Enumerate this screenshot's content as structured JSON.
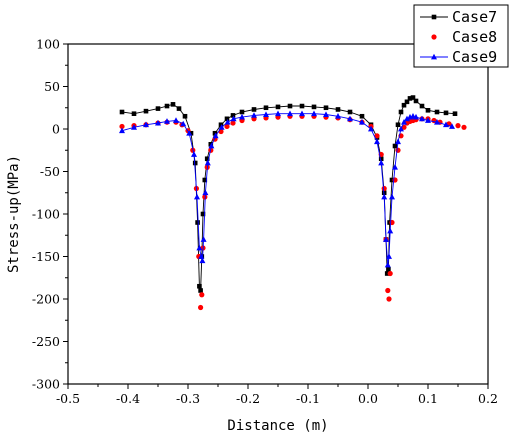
{
  "chart_data": {
    "type": "line",
    "xlabel": "Distance (m)",
    "ylabel": "Stress-up(MPa)",
    "xlim": [
      -0.5,
      0.2
    ],
    "ylim": [
      -300,
      100
    ],
    "x_ticks": [
      -0.5,
      -0.4,
      -0.3,
      -0.2,
      -0.1,
      0.0,
      0.1,
      0.2
    ],
    "x_tick_labels": [
      "-0.5",
      "-0.4",
      "-0.3",
      "-0.2",
      "-0.1",
      "0.0",
      "0.1",
      "0.2"
    ],
    "y_ticks": [
      100,
      50,
      0,
      -50,
      -100,
      -150,
      -200,
      -250,
      -300
    ],
    "y_tick_labels": [
      "100",
      "50",
      "0",
      "-50",
      "-100",
      "-150",
      "-200",
      "-250",
      "-300"
    ],
    "grid": false,
    "legend_position": "top-right",
    "series": [
      {
        "name": "Case7",
        "color": "#000000",
        "marker": "square",
        "x": [
          -0.41,
          -0.39,
          -0.37,
          -0.35,
          -0.335,
          -0.325,
          -0.315,
          -0.305,
          -0.295,
          -0.288,
          -0.284,
          -0.281,
          -0.279,
          -0.277,
          -0.275,
          -0.272,
          -0.268,
          -0.262,
          -0.255,
          -0.245,
          -0.235,
          -0.225,
          -0.21,
          -0.19,
          -0.17,
          -0.15,
          -0.13,
          -0.11,
          -0.09,
          -0.07,
          -0.05,
          -0.03,
          -0.01,
          0.005,
          0.015,
          0.022,
          0.027,
          0.03,
          0.032,
          0.034,
          0.036,
          0.04,
          0.045,
          0.05,
          0.055,
          0.06,
          0.065,
          0.07,
          0.075,
          0.08,
          0.09,
          0.1,
          0.115,
          0.13,
          0.145
        ],
        "y": [
          20,
          18,
          21,
          24,
          27,
          29,
          24,
          15,
          -5,
          -40,
          -110,
          -185,
          -190,
          -150,
          -100,
          -60,
          -35,
          -18,
          -5,
          5,
          12,
          16,
          20,
          23,
          25,
          26,
          27,
          27,
          26,
          25,
          23,
          20,
          15,
          5,
          -10,
          -35,
          -75,
          -130,
          -170,
          -165,
          -110,
          -60,
          -20,
          5,
          20,
          28,
          32,
          36,
          37,
          33,
          27,
          22,
          20,
          19,
          18
        ]
      },
      {
        "name": "Case8",
        "color": "#ff0000",
        "marker": "circle",
        "x": [
          -0.41,
          -0.39,
          -0.37,
          -0.35,
          -0.335,
          -0.32,
          -0.31,
          -0.3,
          -0.292,
          -0.286,
          -0.282,
          -0.279,
          -0.277,
          -0.275,
          -0.272,
          -0.268,
          -0.262,
          -0.255,
          -0.245,
          -0.235,
          -0.225,
          -0.21,
          -0.19,
          -0.17,
          -0.15,
          -0.13,
          -0.11,
          -0.09,
          -0.07,
          -0.05,
          -0.03,
          -0.01,
          0.005,
          0.015,
          0.022,
          0.027,
          0.03,
          0.033,
          0.035,
          0.037,
          0.04,
          0.045,
          0.05,
          0.055,
          0.06,
          0.065,
          0.07,
          0.075,
          0.08,
          0.09,
          0.1,
          0.11,
          0.12,
          0.135,
          0.15,
          0.16
        ],
        "y": [
          3,
          4,
          5,
          7,
          8,
          8,
          5,
          -2,
          -25,
          -70,
          -150,
          -210,
          -195,
          -140,
          -80,
          -45,
          -25,
          -12,
          -3,
          3,
          7,
          10,
          12,
          13,
          14,
          15,
          15,
          15,
          14,
          13,
          11,
          8,
          3,
          -8,
          -30,
          -70,
          -130,
          -190,
          -200,
          -170,
          -110,
          -60,
          -25,
          -8,
          2,
          7,
          9,
          10,
          11,
          12,
          12,
          10,
          8,
          6,
          4,
          2
        ]
      },
      {
        "name": "Case9",
        "color": "#0000ff",
        "marker": "triangle",
        "x": [
          -0.41,
          -0.39,
          -0.37,
          -0.35,
          -0.335,
          -0.32,
          -0.308,
          -0.298,
          -0.29,
          -0.285,
          -0.281,
          -0.278,
          -0.276,
          -0.274,
          -0.271,
          -0.267,
          -0.261,
          -0.254,
          -0.244,
          -0.234,
          -0.224,
          -0.21,
          -0.19,
          -0.17,
          -0.15,
          -0.13,
          -0.11,
          -0.09,
          -0.07,
          -0.05,
          -0.03,
          -0.01,
          0.005,
          0.015,
          0.022,
          0.027,
          0.03,
          0.033,
          0.035,
          0.037,
          0.04,
          0.045,
          0.05,
          0.055,
          0.06,
          0.065,
          0.07,
          0.075,
          0.08,
          0.09,
          0.1,
          0.115,
          0.13,
          0.14
        ],
        "y": [
          -2,
          2,
          5,
          7,
          9,
          10,
          6,
          -5,
          -30,
          -80,
          -140,
          -150,
          -155,
          -130,
          -75,
          -40,
          -20,
          -8,
          2,
          8,
          12,
          14,
          16,
          17,
          18,
          18,
          18,
          18,
          17,
          15,
          12,
          8,
          0,
          -15,
          -40,
          -80,
          -130,
          -160,
          -150,
          -120,
          -80,
          -45,
          -15,
          0,
          8,
          12,
          14,
          15,
          14,
          12,
          10,
          8,
          5,
          3
        ]
      }
    ]
  }
}
